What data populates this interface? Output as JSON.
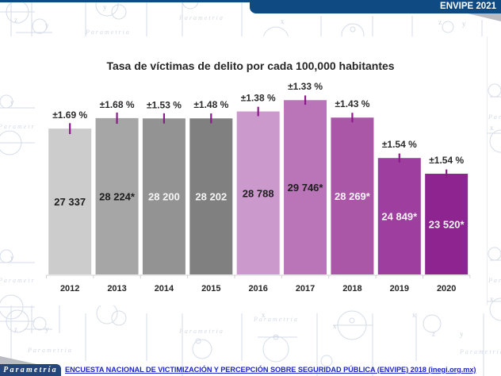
{
  "header": {
    "badge": "ENVIPE 2021",
    "brand_color": "#0f4a82"
  },
  "chart_data": {
    "type": "bar",
    "title": "Tasa de víctimas de delito por cada 100,000 habitantes",
    "xlabel": "",
    "ylabel": "",
    "categories": [
      "2012",
      "2013",
      "2014",
      "2015",
      "2016",
      "2017",
      "2018",
      "2019",
      "2020"
    ],
    "values": [
      27337,
      28224,
      28200,
      28202,
      28788,
      29746,
      28269,
      24849,
      23520
    ],
    "value_labels": [
      "27 337",
      "28 224*",
      "28 200",
      "28 202",
      "28 788",
      "29 746*",
      "28 269*",
      "24 849*",
      "23 520*"
    ],
    "error_margin_pct": [
      1.69,
      1.68,
      1.53,
      1.48,
      1.38,
      1.33,
      1.43,
      1.54,
      1.54
    ],
    "error_labels": [
      "±1.69 %",
      "±1.68 %",
      "±1.53 %",
      "±1.48 %",
      "±1.38 %",
      "±1.33 %",
      "±1.43 %",
      "±1.54 %",
      "±1.54 %"
    ],
    "bar_colors": [
      "#cccccc",
      "#a6a6a6",
      "#939393",
      "#808080",
      "#cc99cc",
      "#ba74b8",
      "#aa57a8",
      "#9e3e9e",
      "#8e2490"
    ],
    "value_label_colors": [
      "#1e1e1e",
      "#1e1e1e",
      "#f5f5f5",
      "#f5f5f5",
      "#1e1e1e",
      "#1e1e1e",
      "#f5f5f5",
      "#f5f5f5",
      "#f5f5f5"
    ],
    "error_bar_color": "#8b1a8b",
    "ylim": [
      15000,
      30500
    ],
    "grid": false,
    "legend": "none",
    "y_axis_visible": false
  },
  "footer": {
    "logo": "Parametría",
    "source_link": "ENCUESTA NACIONAL DE VICTIMIZACIÓN Y PERCEPCIÓN SOBRE SEGURIDAD PÚBLICA (ENVIPE) 2018 (inegi.org.mx)",
    "link_color": "#1d22cf"
  },
  "watermark": {
    "brand": "Parametria",
    "axis_x": "x",
    "axis_y": "y",
    "axis_z": "z"
  }
}
